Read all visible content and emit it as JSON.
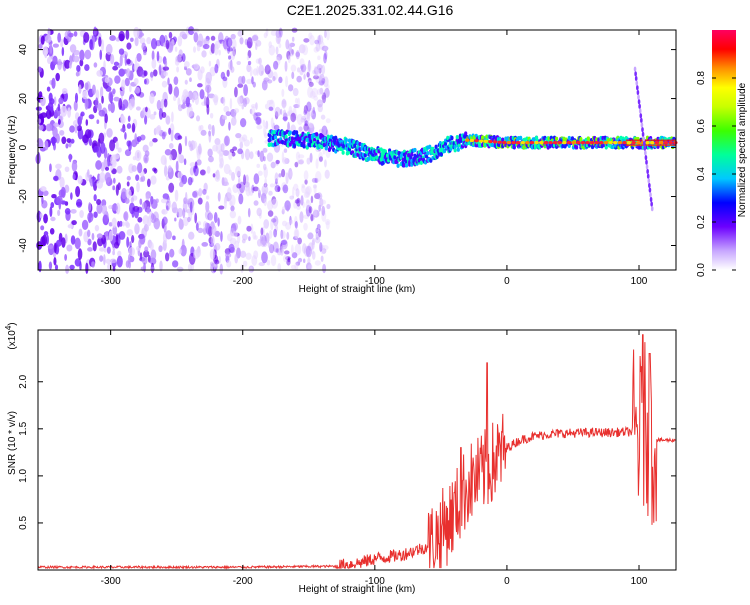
{
  "title": "C2E1.2025.331.02.44.G16",
  "chart_data": [
    {
      "type": "heatmap",
      "xlabel": "Height of straight line (km)",
      "ylabel": "Frequency (Hz)",
      "xlim": [
        -355,
        128
      ],
      "ylim": [
        -50,
        48
      ],
      "x_ticks": [
        -300,
        -200,
        -100,
        0,
        100
      ],
      "y_ticks": [
        -40,
        -20,
        0,
        20,
        40
      ],
      "colorbar": {
        "label": "Normalized spectral amplitude",
        "ticks": [
          0.0,
          0.2,
          0.4,
          0.6,
          0.8
        ],
        "range": [
          0,
          1
        ]
      },
      "features": {
        "noise_region_x": [
          -355,
          -135
        ],
        "signal_trace": [
          {
            "x": -180,
            "y": 4
          },
          {
            "x": -150,
            "y": 3
          },
          {
            "x": -125,
            "y": 1
          },
          {
            "x": -100,
            "y": -3
          },
          {
            "x": -80,
            "y": -5
          },
          {
            "x": -60,
            "y": -3
          },
          {
            "x": -45,
            "y": 1
          },
          {
            "x": -30,
            "y": 3
          },
          {
            "x": 0,
            "y": 2
          },
          {
            "x": 40,
            "y": 2
          },
          {
            "x": 90,
            "y": 2
          },
          {
            "x": 128,
            "y": 2
          }
        ],
        "streak": [
          {
            "x": 97,
            "y": 32
          },
          {
            "x": 110,
            "y": -25
          }
        ]
      }
    },
    {
      "type": "line",
      "xlabel": "Height of straight line (km)",
      "ylabel": "SNR (10 * v/v)",
      "y_multiplier": "(x10",
      "y_multiplier_exp": "4",
      "xlim": [
        -355,
        128
      ],
      "ylim": [
        0,
        2.55
      ],
      "x_ticks": [
        -300,
        -200,
        -100,
        0,
        100
      ],
      "y_ticks": [
        0.5,
        1.0,
        1.5,
        2.0
      ],
      "color": "#e8302e",
      "series": [
        {
          "x": [
            -355,
            -200,
            -130,
            -110,
            -100,
            -80,
            -60,
            -50,
            -40,
            -30,
            -20,
            -10,
            0,
            10,
            20,
            30,
            40,
            60,
            80,
            95,
            100,
            105,
            110,
            113,
            120,
            128
          ],
          "y": [
            0.03,
            0.03,
            0.04,
            0.08,
            0.12,
            0.16,
            0.25,
            0.4,
            0.6,
            0.9,
            1.0,
            1.15,
            1.3,
            1.38,
            1.42,
            1.44,
            1.45,
            1.46,
            1.46,
            1.47,
            1.4,
            1.55,
            1.3,
            1.38,
            1.38,
            1.38
          ]
        }
      ],
      "peaks": [
        {
          "x": -15,
          "y": 2.2
        },
        {
          "x": -35,
          "y": 1.3
        },
        {
          "x": 103,
          "y": 2.5
        },
        {
          "x": 108,
          "y": 2.3
        }
      ]
    }
  ]
}
